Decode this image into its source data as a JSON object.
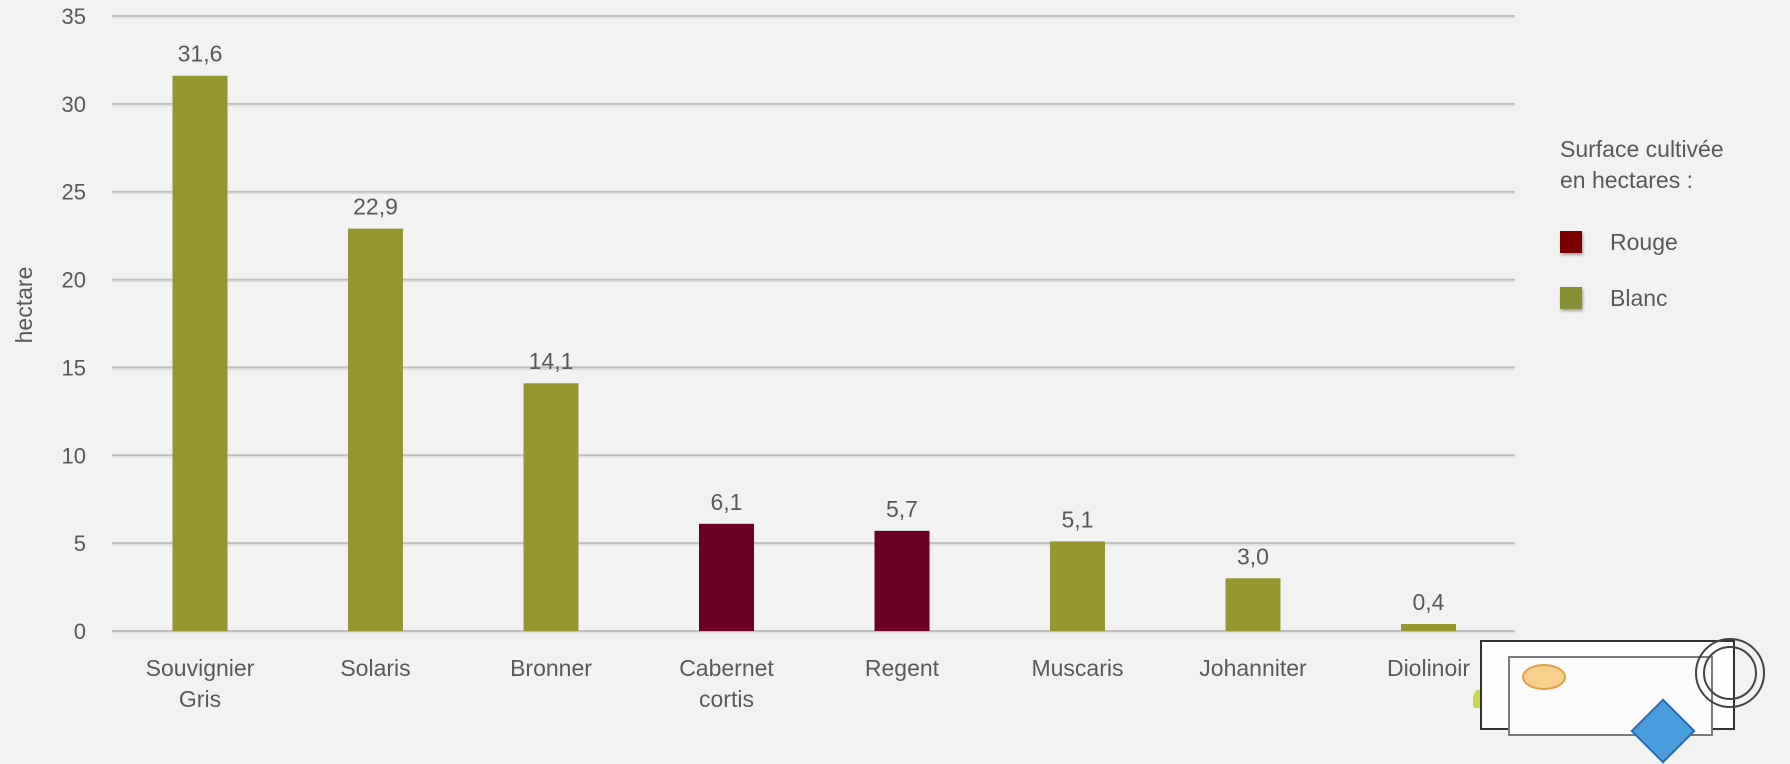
{
  "chart_data": {
    "type": "bar",
    "categories": [
      [
        "Souvignier",
        "Gris"
      ],
      [
        "Solaris"
      ],
      [
        "Bronner"
      ],
      [
        "Cabernet",
        "cortis"
      ],
      [
        "Regent"
      ],
      [
        "Muscaris"
      ],
      [
        "Johanniter"
      ],
      [
        "Diolinoir"
      ]
    ],
    "values": [
      31.6,
      22.9,
      14.1,
      6.1,
      5.7,
      5.1,
      3.0,
      0.4
    ],
    "data_labels": [
      "31,6",
      "22,9",
      "14,1",
      "6,1",
      "5,7",
      "5,1",
      "3,0",
      "0,4"
    ],
    "bar_series": [
      "Blanc",
      "Blanc",
      "Blanc",
      "Rouge",
      "Rouge",
      "Blanc",
      "Blanc",
      "Blanc"
    ],
    "ylabel": "hectare",
    "ylim": [
      0,
      35
    ],
    "yticks": [
      0,
      5,
      10,
      15,
      20,
      25,
      30,
      35
    ],
    "grid": true,
    "legend_position": "right",
    "legend_title": "Surface cultivée en hectares :",
    "legend_title_lines": [
      "Surface cultivée",
      "en hectares :"
    ],
    "series_colors": {
      "Rouge": "#6b0023",
      "Blanc": "#95972f"
    },
    "legend_colors": {
      "Rouge": "#7a0000",
      "Blanc": "#889036"
    }
  },
  "legend": {
    "items": [
      {
        "label": "Rouge"
      },
      {
        "label": "Blanc"
      }
    ]
  },
  "colors": {
    "background": "#f2f2f2",
    "text": "#595959",
    "gridline": "#bfbfbf"
  }
}
